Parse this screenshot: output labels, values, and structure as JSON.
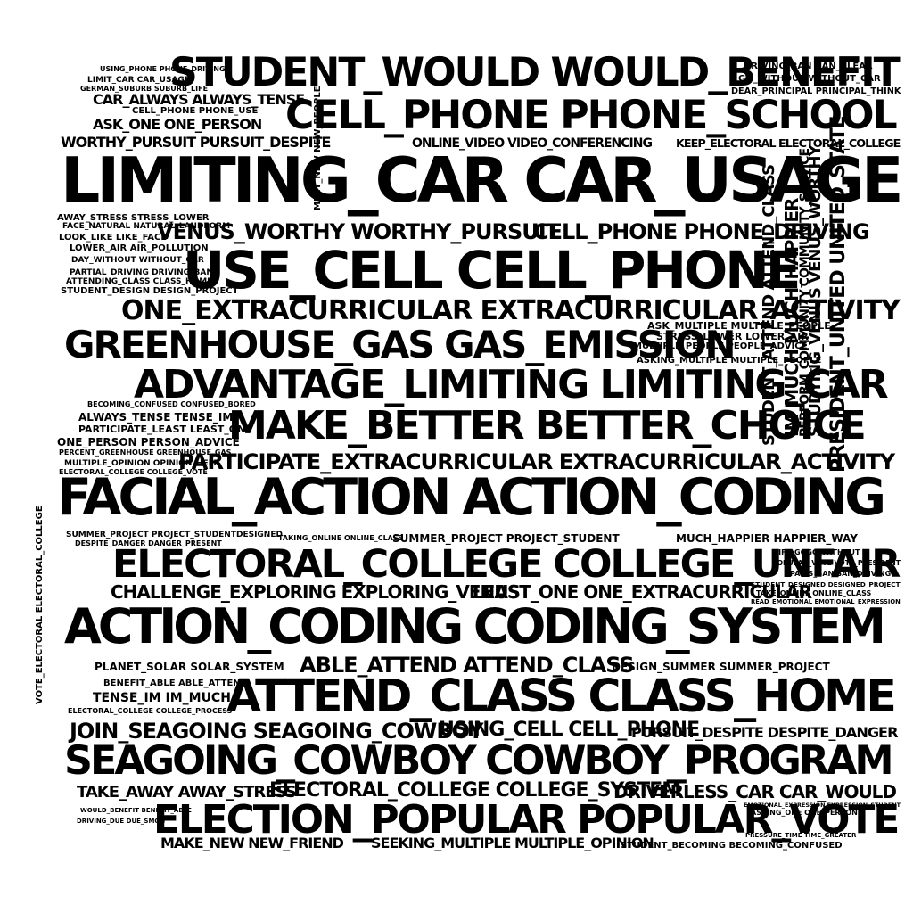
{
  "text_color": "#000000",
  "background_color": "#ffffff",
  "phrases": [
    "STUDENT_WOULD WOULD_BENEFIT",
    "CELL_PHONE PHONE_SCHOOL",
    "LIMITING_CAR CAR_USAGE",
    "USE_CELL CELL_PHONE",
    "VENUS_WORTHY WORTHY_PURSUIT",
    "CELL_PHONE PHONE_DRIVING",
    "ONE_EXTRACURRICULAR EXTRACURRICULAR_ACTIVITY",
    "GREENHOUSE_GAS GAS_EMISSION",
    "ADVANTAGE_LIMITING LIMITING_CAR",
    "MAKE_BETTER BETTER_CHOICE",
    "PARTICIPATE_EXTRACURRICULAR EXTRACURRICULAR_ACTIVITY",
    "FACIAL_ACTION ACTION_CODING",
    "ELECTORAL_COLLEGE COLLEGE_UNFAIR",
    "CHALLENGE_EXPLORING EXPLORING_VENUS",
    "LEAST_ONE ONE_EXTRACURRICULAR",
    "ACTION_CODING CODING_SYSTEM",
    "ABLE_ATTEND ATTEND_CLASS",
    "ATTEND_CLASS CLASS_HOME",
    "JOIN_SEAGOING SEAGOING_COWBOY",
    "USING_CELL CELL_PHONE",
    "PURSUIT_DESPITE DESPITE_DANGER",
    "SEAGOING_COWBOY COWBOY_PROGRAM",
    "TAKE_AWAY AWAY_STRESS",
    "ELECTORAL_COLLEGE COLLEGE_SYSTEM",
    "DRIVERLESS_CAR CAR_WOULD",
    "ELECTION_POPULAR POPULAR_VOTE",
    "MAKE_NEW NEW_FRIEND",
    "SEEKING_MULTIPLE MULTIPLE_OPINION",
    "STUDENT_BECOMING BECOMING_CONFUSED",
    "CAR_ALWAYS ALWAYS_TENSE",
    "ASK_ONE ONE_PERSON",
    "WORTHY_PURSUIT PURSUIT_DESPITE",
    "ONLINE_VIDEO VIDEO_CONFERENCING",
    "KEEP_ELECTORAL ELECTORAL_COLLEGE",
    "DRIVING_BAN BAN_CLEAR",
    "GO_WITHOUT WITHOUT_CAR",
    "DEAR_PRINCIPAL PRINCIPAL_THINK",
    "LIMIT_CAR CAR_USAGE",
    "USING_PHONE PHONE_DRIVING",
    "GERMAN_SUBURB SUBURB_LIFE",
    "CELL_PHONE PHONE_USE",
    "AWAY_STRESS STRESS_LOWER",
    "FACE_NATURAL NATURAL_LANDFORM",
    "LOOK_LIKE LIKE_FACE",
    "LOWER_AIR AIR_POLLUTION",
    "DAY_WITHOUT WITHOUT_CAR",
    "PARTIAL_DRIVING DRIVING_BAN",
    "ATTENDING_CLASS CLASS_HOME",
    "STUDENT_DESIGN DESIGN_PROJECT",
    "ASK_MULTIPLE MULTIPLE_PEOPLE",
    "STRESS_LOWER LOWER_AIR",
    "MULTIPLE_PEOPLE PEOPLE_ADVICE",
    "ASKING_MULTIPLE MULTIPLE_PEOPLE",
    "BECOMING_CONFUSED CONFUSED_BORED",
    "ALWAYS_TENSE TENSE_IM",
    "PARTICIPATE_LEAST LEAST_ONE",
    "ONE_PERSON PERSON_ADVICE",
    "PERCENT_GREENHOUSE GREENHOUSE_GAS",
    "MULTIPLE_OPINION OPINION_HELP",
    "ELECTORAL_COLLEGE COLLEGE_VOTE",
    "SUMMER_PROJECT PROJECT_STUDENTDESIGNED",
    "DESPITE_DANGER DANGER_PRESENT",
    "TAKING_ONLINE ONLINE_CLASS",
    "SUMMER_PROJECT PROJECT_STUDENT",
    "MUCH_HAPPIER HAPPIER_WAY",
    "LIFE_GOGO_WITHOUT",
    "POPULAR_VOTE VOTE_PRESIDENT",
    "PARIS_BAN BAN_DRIVING",
    "STUDENT_DESIGNED DESIGNED_PROJECT",
    "TAKE_ONLINE ONLINE_CLASS",
    "READ_EMOTIONAL EMOTIONAL_EXPRESSION",
    "PLANET_SOLAR SOLAR_SYSTEM",
    "DESIGN_SUMMER SUMMER_PROJECT",
    "BENEFIT_ABLE ABLE_ATTEND",
    "TENSE_IM IM_MUCH",
    "ELECTORAL_COLLEGE COLLEGE_PROCESS",
    "EMOTIONAL_EXPRESSION EXPRESSION_STUDENT",
    "ASKING_ONE ONE_PERSON",
    "WOULD_BENEFIT BENEFIT_ABLE",
    "DRIVING_DUE DUE_SMOG",
    "PRESSURE_TIME TIME_GREATER",
    "STUDENT_ATTEND ATTEND_CLASS",
    "IM_MUCH MUCH_HAPPIER",
    "STUDYING_VENUS VENUS_WORTHY",
    "PRESIDENT_UNITED UNITED_STATE",
    "PERFORM_COMMUNITY COMMUNITY_SERVICE",
    "VOTE_ELECTORAL ELECTORAL_COLLEGE",
    "MEET_NEW NEW_PEOPLE"
  ]
}
